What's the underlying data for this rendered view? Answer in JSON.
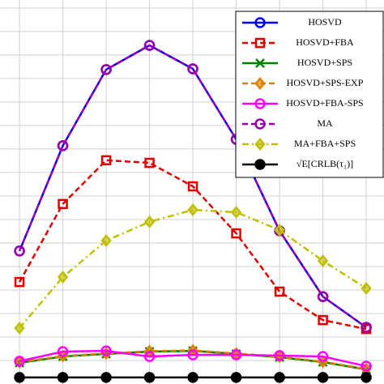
{
  "chart_data": {
    "type": "line",
    "x": [
      1,
      2,
      3,
      4,
      5,
      6,
      7,
      8,
      9
    ],
    "xlim": [
      0.55,
      9.41
    ],
    "ylim": [
      0,
      16.34
    ],
    "xticks": [
      1,
      2,
      3,
      4,
      5,
      6,
      7,
      8,
      9
    ],
    "yticks": [
      1,
      2,
      3,
      4,
      5,
      6,
      7,
      8,
      9,
      10,
      11,
      12,
      13,
      14,
      15,
      16
    ],
    "grid": true,
    "legend": "upper right",
    "series": [
      {
        "name": "HOSVD",
        "color": "#0000ff",
        "marker": "circle",
        "linestyle": "solid",
        "values": [
          5.66,
          10.14,
          13.38,
          14.41,
          13.41,
          10.41,
          6.52,
          3.72,
          2.41
        ]
      },
      {
        "name": "HOSVD+FBA",
        "color": "#e00000",
        "marker": "square",
        "linestyle": "dashed",
        "values": [
          4.34,
          7.66,
          9.52,
          9.41,
          8.41,
          6.41,
          3.93,
          2.72,
          2.34
        ]
      },
      {
        "name": "HOSVD+SPS",
        "color": "#008000",
        "marker": "x",
        "linestyle": "solid",
        "values": [
          0.9,
          1.17,
          1.28,
          1.38,
          1.41,
          1.28,
          1.14,
          0.93,
          0.62
        ]
      },
      {
        "name": "HOSVD+SPS-EXP",
        "color": "#e08000",
        "marker": "diamond",
        "linestyle": "dashed",
        "values": [
          0.93,
          1.19,
          1.3,
          1.4,
          1.43,
          1.3,
          1.16,
          0.95,
          0.64
        ]
      },
      {
        "name": "HOSVD+FBA-SPS",
        "color": "#ff00ff",
        "marker": "circle",
        "linestyle": "solid",
        "values": [
          0.97,
          1.38,
          1.41,
          1.17,
          1.24,
          1.24,
          1.21,
          1.17,
          0.76
        ]
      },
      {
        "name": "MA",
        "color": "#9900aa",
        "marker": "circle",
        "linestyle": "dashed",
        "values": [
          5.66,
          10.14,
          13.38,
          14.41,
          13.41,
          10.41,
          6.52,
          3.72,
          2.41
        ]
      },
      {
        "name": "MA+FBA+SPS",
        "color": "#bfbf00",
        "marker": "diamond",
        "linestyle": "dashdot",
        "values": [
          2.38,
          4.55,
          6.1,
          6.9,
          7.41,
          7.31,
          6.55,
          5.24,
          4.07
        ]
      },
      {
        "name": "√E[CRLB(τ₁)]",
        "color": "#000000",
        "marker": "dot",
        "linestyle": "solid",
        "values": [
          0.28,
          0.28,
          0.28,
          0.28,
          0.28,
          0.28,
          0.28,
          0.28,
          0.28
        ]
      }
    ]
  }
}
